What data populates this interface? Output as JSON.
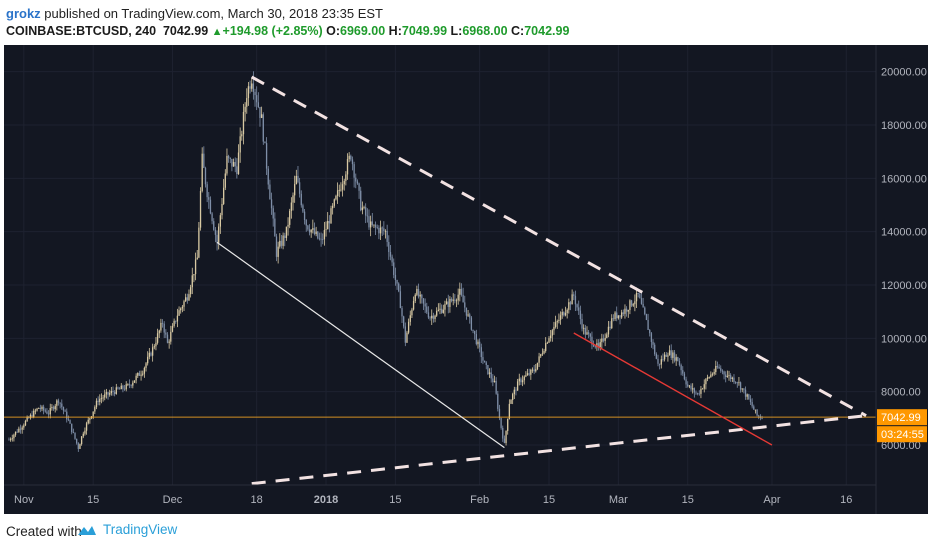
{
  "header": {
    "author": "grokz",
    "published_text": "published on TradingView.com, March 30, 2018 23:35 EST",
    "symbol": "COINBASE:BTCUSD, 240",
    "last_price": "7042.99",
    "arrow": "▲",
    "change": "+194.98 (+2.85%)",
    "o_label": "O:",
    "o_value": "6969.00",
    "h_label": "H:",
    "h_value": "7049.99",
    "l_label": "L:",
    "l_value": "6968.00",
    "c_label": "C:",
    "c_value": "7042.99"
  },
  "footer": {
    "created_with": "Created with",
    "brand": "TradingView"
  },
  "colors": {
    "background": "#131722",
    "price_line": "#f5a623",
    "badge": "#ff9800",
    "ray_white": "#e8e8e8",
    "ray_red": "#e53935",
    "dashed": "#f2e2e2",
    "candle_up": "#d8c9a3",
    "candle_down": "#7f8fa8",
    "axis_text": "#b2b5be"
  },
  "chart_data": {
    "type": "candlestick",
    "title": "",
    "symbol": "COINBASE:BTCUSD",
    "interval": "240",
    "x_ticks": [
      "Nov",
      "15",
      "Dec",
      "18",
      "2018",
      "15",
      "Feb",
      "15",
      "Mar",
      "15",
      "Apr",
      "16"
    ],
    "x_tick_dates": [
      "2017-11-01",
      "2017-11-15",
      "2017-12-01",
      "2017-12-18",
      "2018-01-01",
      "2018-01-15",
      "2018-02-01",
      "2018-02-15",
      "2018-03-01",
      "2018-03-15",
      "2018-04-01",
      "2018-04-16"
    ],
    "y_ticks": [
      "20000.00",
      "18000.00",
      "16000.00",
      "14000.00",
      "12000.00",
      "10000.00",
      "8000.00",
      "6000.00"
    ],
    "y_tick_values": [
      20000,
      18000,
      16000,
      14000,
      12000,
      10000,
      8000,
      6000
    ],
    "ylim": [
      4500,
      21000
    ],
    "xlim": [
      "2017-10-28",
      "2018-04-22"
    ],
    "price_path": [
      [
        "2017-10-29",
        6200
      ],
      [
        "2017-10-31",
        6600
      ],
      [
        "2017-11-02",
        7000
      ],
      [
        "2017-11-04",
        7400
      ],
      [
        "2017-11-06",
        7200
      ],
      [
        "2017-11-08",
        7700
      ],
      [
        "2017-11-10",
        6900
      ],
      [
        "2017-11-12",
        5900
      ],
      [
        "2017-11-13",
        6500
      ],
      [
        "2017-11-16",
        7700
      ],
      [
        "2017-11-19",
        8000
      ],
      [
        "2017-11-22",
        8200
      ],
      [
        "2017-11-25",
        8800
      ],
      [
        "2017-11-27",
        9600
      ],
      [
        "2017-11-29",
        10600
      ],
      [
        "2017-11-30",
        9800
      ],
      [
        "2017-12-02",
        10900
      ],
      [
        "2017-12-04",
        11600
      ],
      [
        "2017-12-06",
        13000
      ],
      [
        "2017-12-07",
        16700
      ],
      [
        "2017-12-08",
        15500
      ],
      [
        "2017-12-10",
        13600
      ],
      [
        "2017-12-12",
        16700
      ],
      [
        "2017-12-14",
        16400
      ],
      [
        "2017-12-16",
        19200
      ],
      [
        "2017-12-17",
        19800
      ],
      [
        "2017-12-19",
        18200
      ],
      [
        "2017-12-20",
        16500
      ],
      [
        "2017-12-22",
        13200
      ],
      [
        "2017-12-24",
        14000
      ],
      [
        "2017-12-26",
        16000
      ],
      [
        "2017-12-28",
        14300
      ],
      [
        "2017-12-31",
        13600
      ],
      [
        "2018-01-03",
        15200
      ],
      [
        "2018-01-06",
        16900
      ],
      [
        "2018-01-08",
        15000
      ],
      [
        "2018-01-10",
        14200
      ],
      [
        "2018-01-13",
        14000
      ],
      [
        "2018-01-16",
        11300
      ],
      [
        "2018-01-17",
        9900
      ],
      [
        "2018-01-19",
        11800
      ],
      [
        "2018-01-22",
        10800
      ],
      [
        "2018-01-25",
        11200
      ],
      [
        "2018-01-28",
        11700
      ],
      [
        "2018-01-31",
        10100
      ],
      [
        "2018-02-02",
        9000
      ],
      [
        "2018-02-04",
        8300
      ],
      [
        "2018-02-05",
        7000
      ],
      [
        "2018-02-06",
        6000
      ],
      [
        "2018-02-07",
        7600
      ],
      [
        "2018-02-09",
        8400
      ],
      [
        "2018-02-12",
        8800
      ],
      [
        "2018-02-15",
        10100
      ],
      [
        "2018-02-18",
        11000
      ],
      [
        "2018-02-20",
        11600
      ],
      [
        "2018-02-22",
        10300
      ],
      [
        "2018-02-25",
        9600
      ],
      [
        "2018-02-28",
        10800
      ],
      [
        "2018-03-02",
        11000
      ],
      [
        "2018-03-04",
        11400
      ],
      [
        "2018-03-05",
        11600
      ],
      [
        "2018-03-07",
        10400
      ],
      [
        "2018-03-09",
        9000
      ],
      [
        "2018-03-11",
        9500
      ],
      [
        "2018-03-13",
        9200
      ],
      [
        "2018-03-15",
        8200
      ],
      [
        "2018-03-17",
        7900
      ],
      [
        "2018-03-19",
        8500
      ],
      [
        "2018-03-21",
        8900
      ],
      [
        "2018-03-23",
        8600
      ],
      [
        "2018-03-25",
        8400
      ],
      [
        "2018-03-27",
        7800
      ],
      [
        "2018-03-29",
        7100
      ],
      [
        "2018-03-30",
        7043
      ]
    ],
    "last_price": 7042.99,
    "countdown": "03:24:55",
    "trendlines": [
      {
        "style": "dashed",
        "color": "dashed",
        "from": [
          "2017-12-17",
          19800
        ],
        "to": [
          "2018-04-20",
          7100
        ]
      },
      {
        "style": "dashed",
        "color": "dashed",
        "from": [
          "2017-12-17",
          4550
        ],
        "to": [
          "2018-04-20",
          7100
        ]
      },
      {
        "style": "solid",
        "color": "ray_white",
        "from": [
          "2017-12-10",
          13600
        ],
        "to": [
          "2018-02-06",
          5900
        ]
      },
      {
        "style": "solid",
        "color": "ray_red",
        "from": [
          "2018-02-20",
          10200
        ],
        "to": [
          "2018-04-01",
          6000
        ]
      }
    ]
  }
}
